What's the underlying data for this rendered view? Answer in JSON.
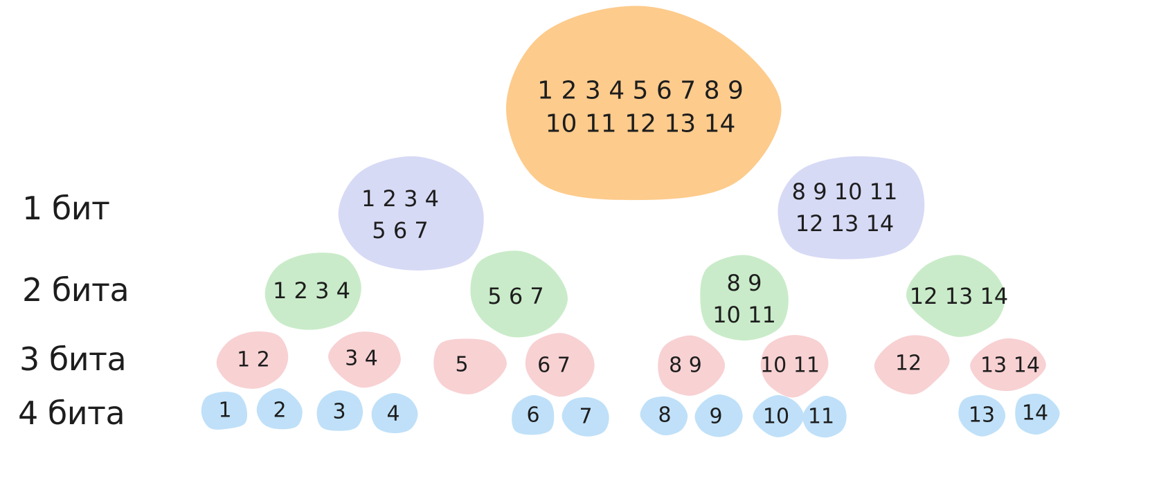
{
  "levels": [
    "1 бит",
    "2 бита",
    "3 бита",
    "4 бита"
  ],
  "colors": {
    "root": "#fdcb8c",
    "bit1": "#d7daf5",
    "bit2": "#c9ebc9",
    "bit3": "#f8d1d3",
    "bit4": "#bfe0f8"
  },
  "tree": {
    "root": {
      "lines": [
        "1 2 3 4 5 6 7 8 9",
        "10 11 12 13 14"
      ]
    },
    "bit1": [
      {
        "lines": [
          "1 2 3 4",
          "5 6 7"
        ]
      },
      {
        "lines": [
          "8 9 10 11",
          "12 13 14"
        ]
      }
    ],
    "bit2": [
      {
        "lines": [
          "1 2 3 4"
        ]
      },
      {
        "lines": [
          "5 6 7"
        ]
      },
      {
        "lines": [
          "8 9",
          "10 11"
        ]
      },
      {
        "lines": [
          "12 13 14"
        ]
      }
    ],
    "bit3": [
      {
        "lines": [
          "1 2"
        ]
      },
      {
        "lines": [
          "3 4"
        ]
      },
      {
        "lines": [
          "5"
        ]
      },
      {
        "lines": [
          "6 7"
        ]
      },
      {
        "lines": [
          "8 9"
        ]
      },
      {
        "lines": [
          "10 11"
        ]
      },
      {
        "lines": [
          "12"
        ]
      },
      {
        "lines": [
          "13 14"
        ]
      }
    ],
    "bit4": [
      {
        "lines": [
          "1"
        ]
      },
      {
        "lines": [
          "2"
        ]
      },
      {
        "lines": [
          "3"
        ]
      },
      {
        "lines": [
          "4"
        ]
      },
      {
        "lines": [
          "6"
        ]
      },
      {
        "lines": [
          "7"
        ]
      },
      {
        "lines": [
          "8"
        ]
      },
      {
        "lines": [
          "9"
        ]
      },
      {
        "lines": [
          "10"
        ]
      },
      {
        "lines": [
          "11"
        ]
      },
      {
        "lines": [
          "13"
        ]
      },
      {
        "lines": [
          "14"
        ]
      }
    ]
  }
}
